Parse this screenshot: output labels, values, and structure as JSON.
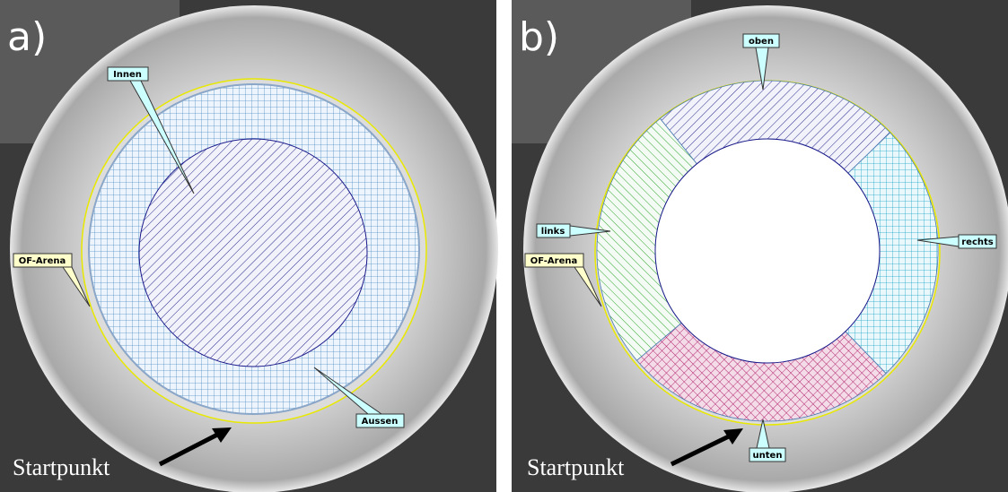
{
  "panels": [
    {
      "label": "a)",
      "zones": [
        "Innen",
        "OF-Arena",
        "Aussen"
      ],
      "start": "Startpunkt"
    },
    {
      "label": "b)",
      "zones": [
        "oben",
        "links",
        "rechts",
        "OF-Arena",
        "unten"
      ],
      "start": "Startpunkt"
    }
  ]
}
